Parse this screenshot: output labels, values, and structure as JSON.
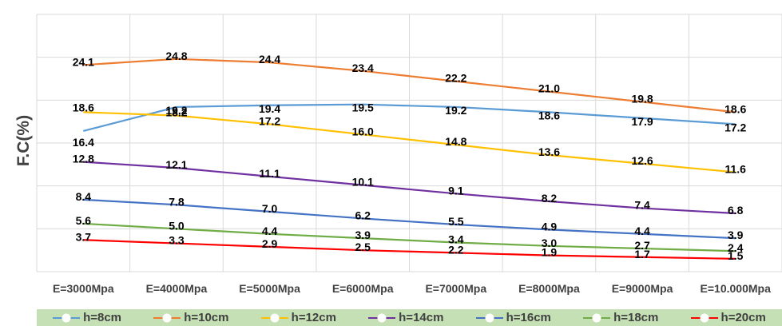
{
  "chart_data": {
    "type": "line",
    "title": "",
    "xlabel": "",
    "ylabel": "F.C(%)",
    "categories": [
      "E=3000Mpa",
      "E=4000Mpa",
      "E=5000Mpa",
      "E=6000Mpa",
      "E=7000Mpa",
      "E=8000Mpa",
      "E=9000Mpa",
      "E=10.000Mpa"
    ],
    "ylim": [
      0,
      30
    ],
    "grid": true,
    "legend_position": "bottom",
    "series": [
      {
        "name": "h=8cm",
        "color": "#5b9bd5",
        "values": [
          16.4,
          19.2,
          19.4,
          19.5,
          19.2,
          18.6,
          17.9,
          17.2
        ]
      },
      {
        "name": "h=10cm",
        "color": "#ed7d31",
        "values": [
          24.1,
          24.8,
          24.4,
          23.4,
          22.2,
          21.0,
          19.8,
          18.6
        ]
      },
      {
        "name": "h=12cm",
        "color": "#ffc000",
        "values": [
          18.6,
          18.2,
          17.2,
          16.0,
          14.8,
          13.6,
          12.6,
          11.6
        ]
      },
      {
        "name": "h=14cm",
        "color": "#7030a0",
        "values": [
          12.8,
          12.1,
          11.1,
          10.1,
          9.1,
          8.2,
          7.4,
          6.8
        ]
      },
      {
        "name": "h=16cm",
        "color": "#4472c4",
        "values": [
          8.4,
          7.8,
          7.0,
          6.2,
          5.5,
          4.9,
          4.4,
          3.9
        ]
      },
      {
        "name": "h=18cm",
        "color": "#70ad47",
        "values": [
          5.6,
          5.0,
          4.4,
          3.9,
          3.4,
          3.0,
          2.7,
          2.4
        ]
      },
      {
        "name": "h=20cm",
        "color": "#ff0000",
        "values": [
          3.7,
          3.3,
          2.9,
          2.5,
          2.2,
          1.9,
          1.7,
          1.5
        ]
      }
    ],
    "data_labels": [
      [
        "16.4",
        "19.2",
        "19.4",
        "19.5",
        "19.2",
        "18.6",
        "17.9",
        "17.2"
      ],
      [
        "24.1",
        "24.8",
        "24.4",
        "23.4",
        "22.2",
        "21.0",
        "19.8",
        "18.6"
      ],
      [
        "18.6",
        "18.2",
        "17.2",
        "16.0",
        "14.8",
        "13.6",
        "12.6",
        "11.6"
      ],
      [
        "12.8",
        "12.1",
        "11.1",
        "10.1",
        "9.1",
        "8.2",
        "7.4",
        "6.8"
      ],
      [
        "8.4",
        "7.8",
        "7.0",
        "6.2",
        "5.5",
        "4.9",
        "4.4",
        "3.9"
      ],
      [
        "5.6",
        "5.0",
        "4.4",
        "3.9",
        "3.4",
        "3.0",
        "2.7",
        "2.4"
      ],
      [
        "3.7",
        "3.3",
        "2.9",
        "2.5",
        "2.2",
        "1.9",
        "1.7",
        "1.5"
      ]
    ]
  }
}
